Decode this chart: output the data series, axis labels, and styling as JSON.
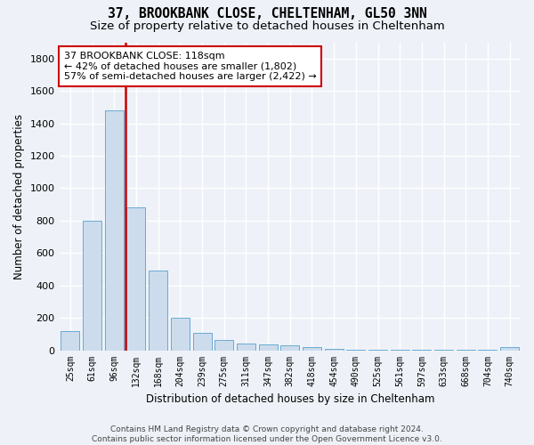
{
  "title": "37, BROOKBANK CLOSE, CHELTENHAM, GL50 3NN",
  "subtitle": "Size of property relative to detached houses in Cheltenham",
  "xlabel": "Distribution of detached houses by size in Cheltenham",
  "ylabel": "Number of detached properties",
  "footer_line1": "Contains HM Land Registry data © Crown copyright and database right 2024.",
  "footer_line2": "Contains public sector information licensed under the Open Government Licence v3.0.",
  "bar_labels": [
    "25sqm",
    "61sqm",
    "96sqm",
    "132sqm",
    "168sqm",
    "204sqm",
    "239sqm",
    "275sqm",
    "311sqm",
    "347sqm",
    "382sqm",
    "418sqm",
    "454sqm",
    "490sqm",
    "525sqm",
    "561sqm",
    "597sqm",
    "633sqm",
    "668sqm",
    "704sqm",
    "740sqm"
  ],
  "bar_values": [
    120,
    800,
    1480,
    880,
    490,
    200,
    105,
    65,
    40,
    35,
    30,
    20,
    10,
    5,
    3,
    2,
    2,
    2,
    2,
    2,
    18
  ],
  "bar_color": "#ccdcec",
  "bar_edge_color": "#6aaad4",
  "ylim": [
    0,
    1900
  ],
  "yticks": [
    0,
    200,
    400,
    600,
    800,
    1000,
    1200,
    1400,
    1600,
    1800
  ],
  "vline_x_bar_index": 2,
  "vline_x_offset": 0.5,
  "vline_color": "#cc0000",
  "annotation_line1": "37 BROOKBANK CLOSE: 118sqm",
  "annotation_line2": "← 42% of detached houses are smaller (1,802)",
  "annotation_line3": "57% of semi-detached houses are larger (2,422) →",
  "annotation_box_color": "#ffffff",
  "annotation_box_edgecolor": "#cc0000",
  "background_color": "#eef2f8",
  "grid_color": "#ffffff",
  "title_fontsize": 10.5,
  "subtitle_fontsize": 9.5,
  "axis_label_fontsize": 8.5,
  "tick_fontsize": 8,
  "annot_fontsize": 8
}
